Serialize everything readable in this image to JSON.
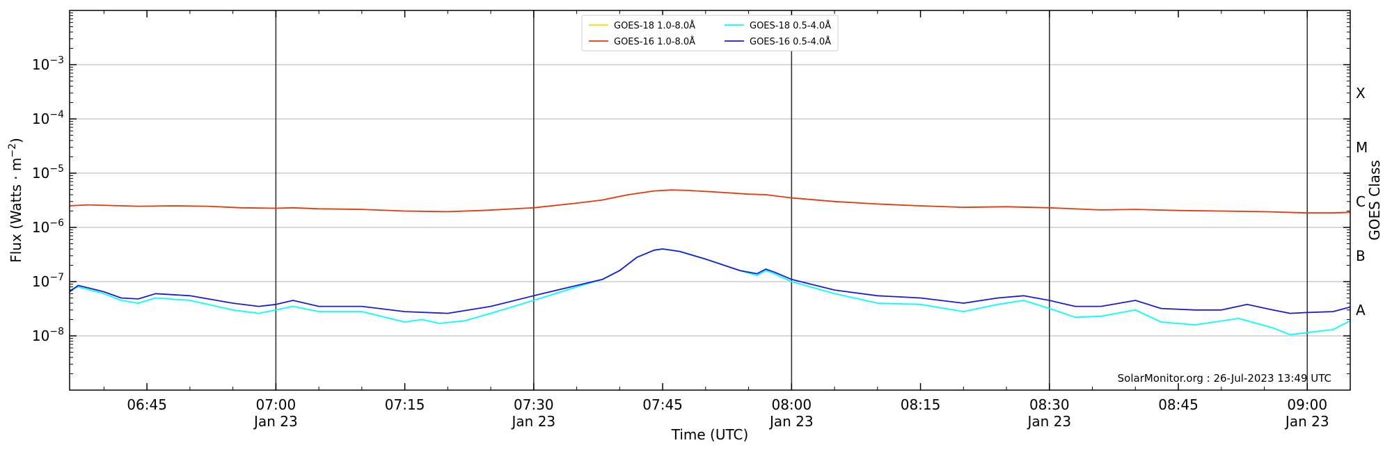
{
  "chart_data": {
    "type": "line",
    "xlabel": "Time (UTC)",
    "ylabel": "Flux (Watts · m",
    "ylabel_sup": "−2",
    "ylabel_end": ")",
    "right_label": "GOES Class",
    "watermark": "SolarMonitor.org : 26-Jul-2023 13:49 UTC",
    "y_scale": "log",
    "ylim": [
      1e-09,
      0.01
    ],
    "xlim": [
      "06:36",
      "09:05"
    ],
    "grid": "horizontal",
    "legend_position": "top-center",
    "y_ticks": [
      {
        "value": 1e-08,
        "mantissa": "10",
        "exp": "−8"
      },
      {
        "value": 1e-07,
        "mantissa": "10",
        "exp": "−7"
      },
      {
        "value": 1e-06,
        "mantissa": "10",
        "exp": "−6"
      },
      {
        "value": 1e-05,
        "mantissa": "10",
        "exp": "−5"
      },
      {
        "value": 0.0001,
        "mantissa": "10",
        "exp": "−4"
      },
      {
        "value": 0.001,
        "mantissa": "10",
        "exp": "−3"
      }
    ],
    "x_ticks": [
      {
        "time": "06:45",
        "label": "06:45",
        "sublabel": ""
      },
      {
        "time": "07:00",
        "label": "07:00",
        "sublabel": "Jan 23"
      },
      {
        "time": "07:15",
        "label": "07:15",
        "sublabel": ""
      },
      {
        "time": "07:30",
        "label": "07:30",
        "sublabel": "Jan 23"
      },
      {
        "time": "07:45",
        "label": "07:45",
        "sublabel": ""
      },
      {
        "time": "08:00",
        "label": "08:00",
        "sublabel": "Jan 23"
      },
      {
        "time": "08:15",
        "label": "08:15",
        "sublabel": ""
      },
      {
        "time": "08:30",
        "label": "08:30",
        "sublabel": "Jan 23"
      },
      {
        "time": "08:45",
        "label": "08:45",
        "sublabel": ""
      },
      {
        "time": "09:00",
        "label": "09:00",
        "sublabel": "Jan 23"
      }
    ],
    "vertical_lines": [
      "07:00",
      "07:30",
      "08:00",
      "08:30",
      "09:00"
    ],
    "goes_classes": [
      {
        "label": "A",
        "value": 3e-08
      },
      {
        "label": "B",
        "value": 3e-07
      },
      {
        "label": "C",
        "value": 3e-06
      },
      {
        "label": "M",
        "value": 3e-05
      },
      {
        "label": "X",
        "value": 0.0003
      }
    ],
    "series": [
      {
        "name": "GOES-18 1.0-8.0Å",
        "color": "#FFD700",
        "data": []
      },
      {
        "name": "GOES-16 1.0-8.0Å",
        "color": "#E8350A",
        "data": [
          [
            "06:36",
            2.5e-06
          ],
          [
            "06:38",
            2.6e-06
          ],
          [
            "06:44",
            2.45e-06
          ],
          [
            "06:48",
            2.5e-06
          ],
          [
            "06:52",
            2.45e-06
          ],
          [
            "06:56",
            2.3e-06
          ],
          [
            "07:00",
            2.25e-06
          ],
          [
            "07:02",
            2.3e-06
          ],
          [
            "07:05",
            2.2e-06
          ],
          [
            "07:10",
            2.15e-06
          ],
          [
            "07:15",
            2e-06
          ],
          [
            "07:20",
            1.95e-06
          ],
          [
            "07:24",
            2.05e-06
          ],
          [
            "07:30",
            2.3e-06
          ],
          [
            "07:35",
            2.8e-06
          ],
          [
            "07:38",
            3.2e-06
          ],
          [
            "07:41",
            4e-06
          ],
          [
            "07:44",
            4.7e-06
          ],
          [
            "07:46",
            4.9e-06
          ],
          [
            "07:48",
            4.8e-06
          ],
          [
            "07:51",
            4.5e-06
          ],
          [
            "07:55",
            4.1e-06
          ],
          [
            "07:57",
            4e-06
          ],
          [
            "08:00",
            3.5e-06
          ],
          [
            "08:05",
            3e-06
          ],
          [
            "08:10",
            2.7e-06
          ],
          [
            "08:15",
            2.5e-06
          ],
          [
            "08:20",
            2.35e-06
          ],
          [
            "08:25",
            2.4e-06
          ],
          [
            "08:30",
            2.3e-06
          ],
          [
            "08:36",
            2.1e-06
          ],
          [
            "08:40",
            2.15e-06
          ],
          [
            "08:45",
            2.05e-06
          ],
          [
            "08:50",
            2e-06
          ],
          [
            "08:55",
            1.95e-06
          ],
          [
            "09:00",
            1.85e-06
          ],
          [
            "09:03",
            1.85e-06
          ],
          [
            "09:05",
            1.9e-06
          ]
        ]
      },
      {
        "name": "GOES-18 0.5-4.0Å",
        "color": "#00FFFF",
        "data": [
          [
            "06:36",
            7e-08
          ],
          [
            "06:37",
            8e-08
          ],
          [
            "06:40",
            6e-08
          ],
          [
            "06:42",
            4.5e-08
          ],
          [
            "06:44",
            4e-08
          ],
          [
            "06:46",
            5e-08
          ],
          [
            "06:50",
            4.5e-08
          ],
          [
            "06:55",
            3e-08
          ],
          [
            "06:58",
            2.6e-08
          ],
          [
            "07:00",
            3e-08
          ],
          [
            "07:02",
            3.5e-08
          ],
          [
            "07:05",
            2.8e-08
          ],
          [
            "07:10",
            2.8e-08
          ],
          [
            "07:15",
            1.8e-08
          ],
          [
            "07:17",
            2e-08
          ],
          [
            "07:19",
            1.7e-08
          ],
          [
            "07:22",
            1.9e-08
          ],
          [
            "07:25",
            2.6e-08
          ],
          [
            "07:30",
            4.5e-08
          ],
          [
            "07:35",
            8e-08
          ],
          [
            "07:38",
            1.1e-07
          ],
          [
            "07:40",
            1.6e-07
          ],
          [
            "07:42",
            2.8e-07
          ],
          [
            "07:44",
            3.8e-07
          ],
          [
            "07:45",
            4e-07
          ],
          [
            "07:47",
            3.6e-07
          ],
          [
            "07:50",
            2.6e-07
          ],
          [
            "07:54",
            1.6e-07
          ],
          [
            "07:56",
            1.3e-07
          ],
          [
            "07:57",
            1.6e-07
          ],
          [
            "07:58",
            1.4e-07
          ],
          [
            "08:00",
            1e-07
          ],
          [
            "08:05",
            6e-08
          ],
          [
            "08:10",
            4e-08
          ],
          [
            "08:15",
            3.8e-08
          ],
          [
            "08:20",
            2.8e-08
          ],
          [
            "08:24",
            3.8e-08
          ],
          [
            "08:27",
            4.5e-08
          ],
          [
            "08:30",
            3.2e-08
          ],
          [
            "08:33",
            2.2e-08
          ],
          [
            "08:36",
            2.3e-08
          ],
          [
            "08:40",
            3e-08
          ],
          [
            "08:43",
            1.8e-08
          ],
          [
            "08:47",
            1.6e-08
          ],
          [
            "08:52",
            2.1e-08
          ],
          [
            "08:56",
            1.4e-08
          ],
          [
            "08:58",
            1.05e-08
          ],
          [
            "09:00",
            1.15e-08
          ],
          [
            "09:03",
            1.3e-08
          ],
          [
            "09:05",
            1.9e-08
          ]
        ]
      },
      {
        "name": "GOES-16 0.5-4.0Å",
        "color": "#1A1ADB",
        "data": [
          [
            "06:36",
            6.5e-08
          ],
          [
            "06:37",
            8.5e-08
          ],
          [
            "06:40",
            6.5e-08
          ],
          [
            "06:42",
            5e-08
          ],
          [
            "06:44",
            4.8e-08
          ],
          [
            "06:46",
            6e-08
          ],
          [
            "06:50",
            5.5e-08
          ],
          [
            "06:55",
            4e-08
          ],
          [
            "06:58",
            3.5e-08
          ],
          [
            "07:00",
            3.8e-08
          ],
          [
            "07:02",
            4.5e-08
          ],
          [
            "07:05",
            3.5e-08
          ],
          [
            "07:10",
            3.5e-08
          ],
          [
            "07:15",
            2.8e-08
          ],
          [
            "07:20",
            2.6e-08
          ],
          [
            "07:25",
            3.5e-08
          ],
          [
            "07:30",
            5.5e-08
          ],
          [
            "07:35",
            8.5e-08
          ],
          [
            "07:38",
            1.1e-07
          ],
          [
            "07:40",
            1.6e-07
          ],
          [
            "07:42",
            2.8e-07
          ],
          [
            "07:44",
            3.8e-07
          ],
          [
            "07:45",
            4e-07
          ],
          [
            "07:47",
            3.6e-07
          ],
          [
            "07:50",
            2.6e-07
          ],
          [
            "07:54",
            1.6e-07
          ],
          [
            "07:56",
            1.4e-07
          ],
          [
            "07:57",
            1.7e-07
          ],
          [
            "07:58",
            1.5e-07
          ],
          [
            "08:00",
            1.1e-07
          ],
          [
            "08:05",
            7e-08
          ],
          [
            "08:10",
            5.5e-08
          ],
          [
            "08:15",
            5e-08
          ],
          [
            "08:20",
            4e-08
          ],
          [
            "08:24",
            5e-08
          ],
          [
            "08:27",
            5.5e-08
          ],
          [
            "08:30",
            4.5e-08
          ],
          [
            "08:33",
            3.5e-08
          ],
          [
            "08:36",
            3.5e-08
          ],
          [
            "08:40",
            4.5e-08
          ],
          [
            "08:43",
            3.2e-08
          ],
          [
            "08:47",
            3e-08
          ],
          [
            "08:50",
            3e-08
          ],
          [
            "08:53",
            3.8e-08
          ],
          [
            "08:56",
            3e-08
          ],
          [
            "08:58",
            2.6e-08
          ],
          [
            "09:00",
            2.7e-08
          ],
          [
            "09:03",
            2.8e-08
          ],
          [
            "09:05",
            3.4e-08
          ]
        ]
      }
    ]
  }
}
